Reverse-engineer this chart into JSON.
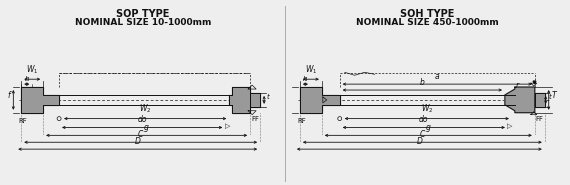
{
  "title_left": "SOP TYPE",
  "subtitle_left": "NOMINAL SIZE 10-1000mm",
  "title_right": "SOH TYPE",
  "subtitle_right": "NOMINAL SIZE 450-1000mm",
  "bg_color": "#eeeeee",
  "flange_color": "#999999",
  "line_color": "#111111",
  "title_fontsize": 7.0,
  "label_fontsize": 5.5
}
